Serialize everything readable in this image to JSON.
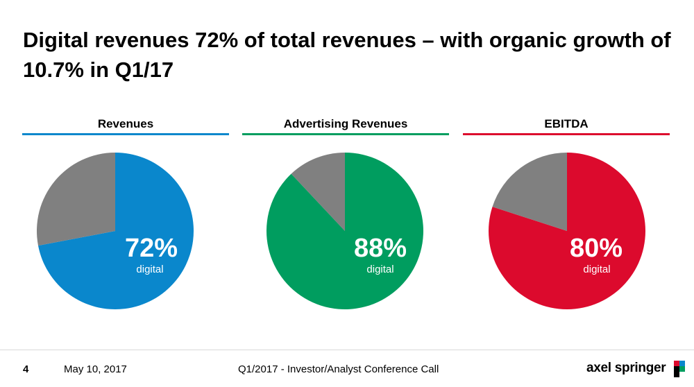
{
  "title": "Digital revenues 72% of total revenues – with organic growth of 10.7% in Q1/17",
  "footer": {
    "page": "4",
    "date": "May 10, 2017",
    "event": "Q1/2017 - Investor/Analyst Conference Call",
    "logo": "axel springer"
  },
  "colors": {
    "blue": "#0a87cc",
    "green": "#009d5f",
    "red": "#dc0a2d",
    "gray": "#808080"
  },
  "chart_data": [
    {
      "type": "pie",
      "title": "Revenues",
      "categories": [
        "digital",
        ""
      ],
      "values": [
        72,
        28
      ],
      "label_value": "72%",
      "label_text": "digital",
      "colors": [
        "#0a87cc",
        "#808080"
      ]
    },
    {
      "type": "pie",
      "title": "Advertising Revenues",
      "categories": [
        "digital",
        ""
      ],
      "values": [
        88,
        12
      ],
      "label_value": "88%",
      "label_text": "digital",
      "colors": [
        "#009d5f",
        "#808080"
      ]
    },
    {
      "type": "pie",
      "title": "EBITDA",
      "categories": [
        "digital",
        ""
      ],
      "values": [
        80,
        20
      ],
      "label_value": "80%",
      "label_text": "digital",
      "colors": [
        "#dc0a2d",
        "#808080"
      ]
    }
  ]
}
